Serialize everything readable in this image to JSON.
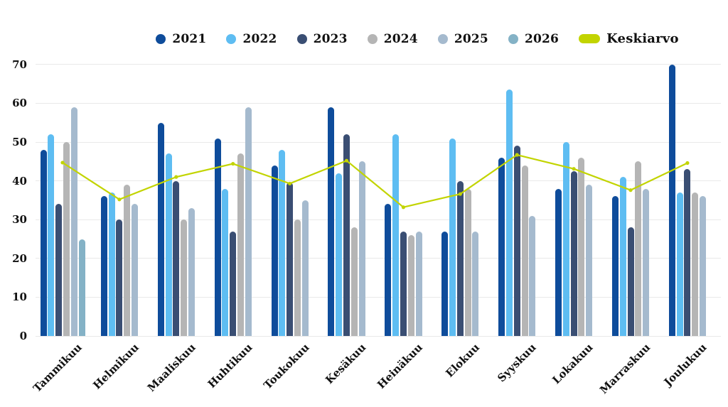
{
  "chart_data": {
    "type": "bar",
    "title": "",
    "categories": [
      "Tammikuu",
      "Helmikuu",
      "Maaliskuu",
      "Huhtikuu",
      "Toukokuu",
      "Kesäkuu",
      "Heinäkuu",
      "Elokuu",
      "Syyskuu",
      "Lokakuu",
      "Marraskuu",
      "Joulukuu"
    ],
    "series": [
      {
        "name": "2021",
        "color": "#0e4c9b",
        "values": [
          48,
          36,
          55,
          51,
          44,
          59,
          34,
          27,
          46,
          38,
          36,
          70
        ]
      },
      {
        "name": "2022",
        "color": "#5ebdf2",
        "values": [
          52,
          37,
          47,
          38,
          48,
          42,
          52,
          51,
          63.5,
          50,
          41,
          37
        ]
      },
      {
        "name": "2023",
        "color": "#3a4e73",
        "values": [
          34,
          30,
          40,
          27,
          39.5,
          52,
          27,
          40,
          49,
          42.5,
          28,
          43
        ]
      },
      {
        "name": "2024",
        "color": "#b5b5b5",
        "values": [
          50,
          39,
          30,
          47,
          30,
          28,
          26,
          38,
          44,
          46,
          45,
          37
        ]
      },
      {
        "name": "2025",
        "color": "#a5bace",
        "values": [
          59,
          34,
          33,
          59,
          35,
          45,
          27,
          27,
          31,
          39,
          38,
          36
        ]
      },
      {
        "name": "2026",
        "color": "#84b2c6",
        "values": [
          25,
          null,
          null,
          null,
          null,
          null,
          null,
          null,
          null,
          null,
          null,
          null
        ]
      }
    ],
    "average": {
      "name": "Keskiarvo",
      "color": "#c2d400",
      "values": [
        44.7,
        35.2,
        41.0,
        44.4,
        39.3,
        45.2,
        33.2,
        36.6,
        46.7,
        43.1,
        37.6,
        44.6
      ]
    },
    "ylabel": "",
    "xlabel": "",
    "ylim": [
      0,
      70
    ],
    "yticks": [
      0,
      10,
      20,
      30,
      40,
      50,
      60,
      70
    ],
    "grid": true,
    "legend_position": "top",
    "x_label_rotation": -45,
    "bar_style": "rounded-top",
    "gridline_color": "#e9e9e9",
    "text_color": "#111111",
    "background_color": "#ffffff"
  }
}
